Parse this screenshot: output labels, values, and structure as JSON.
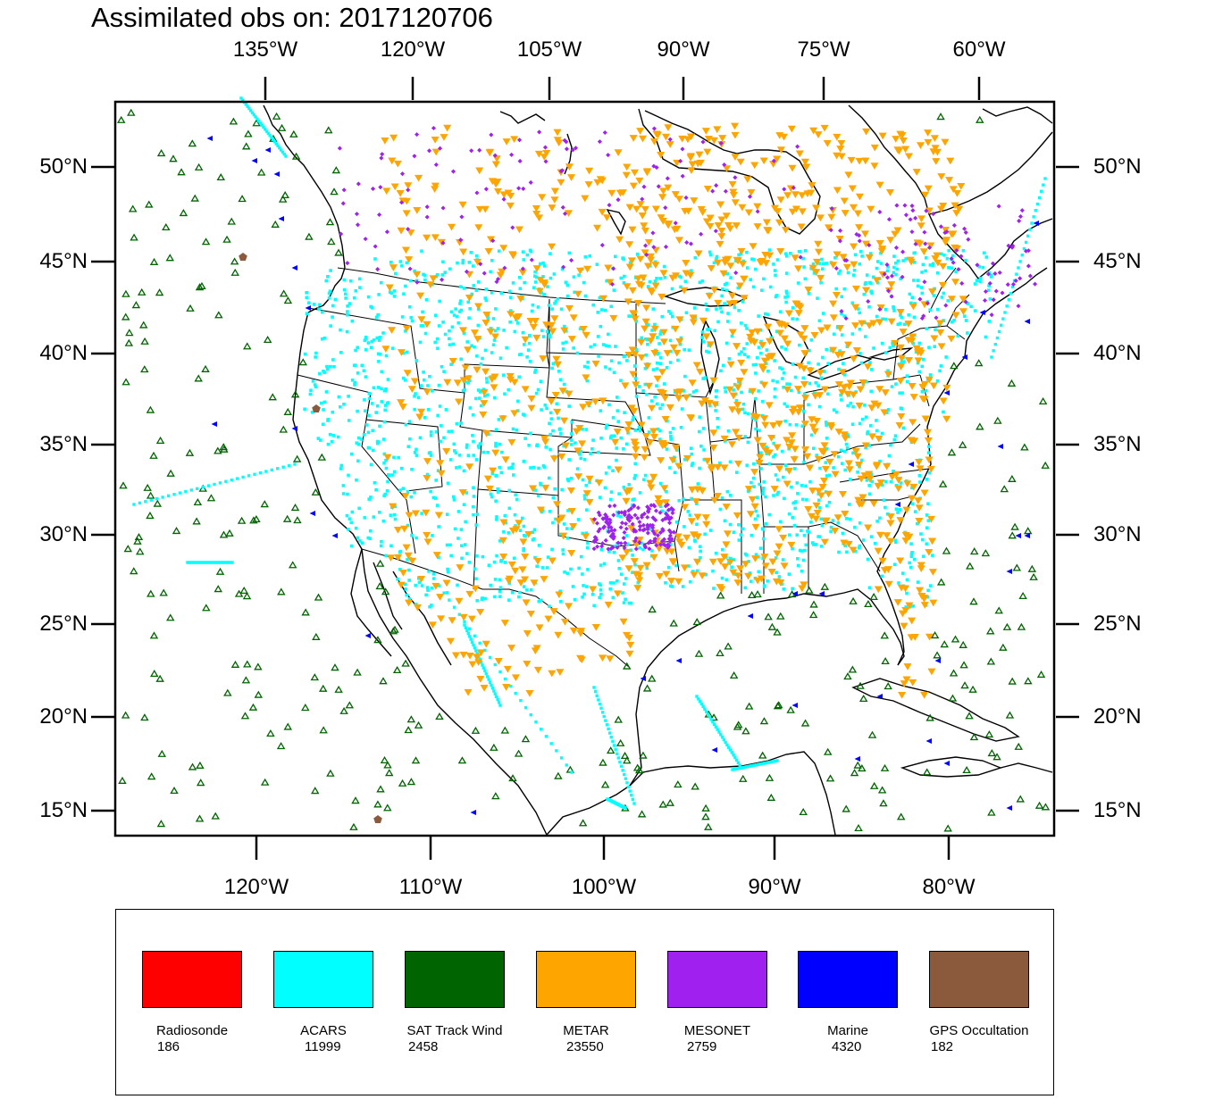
{
  "title": "Assimilated obs on: 2017120706",
  "map": {
    "projection": "Lambert conformal (CONUS domain)",
    "top_lon_labels": [
      "135°W",
      "120°W",
      "105°W",
      "90°W",
      "75°W",
      "60°W"
    ],
    "bottom_lon_labels": [
      "120°W",
      "110°W",
      "100°W",
      "90°W",
      "80°W"
    ],
    "lat_labels": [
      "50°N",
      "45°N",
      "40°N",
      "35°N",
      "30°N",
      "25°N",
      "20°N",
      "15°N"
    ]
  },
  "legend": [
    {
      "name": "Radiosonde",
      "count": "186",
      "color": "#ff0000"
    },
    {
      "name": "ACARS",
      "count": "11999",
      "color": "#00ffff"
    },
    {
      "name": "SAT Track Wind",
      "count": "2458",
      "color": "#006400"
    },
    {
      "name": "METAR",
      "count": "23550",
      "color": "#ffa500"
    },
    {
      "name": "MESONET",
      "count": "2759",
      "color": "#a020f0"
    },
    {
      "name": "Marine",
      "count": "4320",
      "color": "#0000ff"
    },
    {
      "name": "GPS Occultation",
      "count": "182",
      "color": "#8b5a3c"
    }
  ]
}
